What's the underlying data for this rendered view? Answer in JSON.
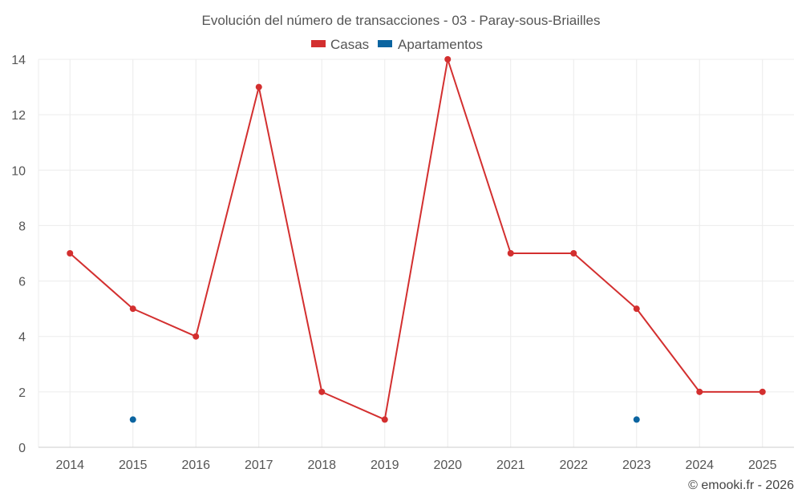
{
  "chart_data": {
    "type": "line",
    "title": "Evolución del número de transacciones - 03 - Paray-sous-Briailles",
    "categories": [
      "2014",
      "2015",
      "2016",
      "2017",
      "2018",
      "2019",
      "2020",
      "2021",
      "2022",
      "2023",
      "2024",
      "2025"
    ],
    "series": [
      {
        "name": "Casas",
        "color": "#d32f2f",
        "values": [
          7,
          5,
          4,
          13,
          2,
          1,
          14,
          7,
          7,
          5,
          2,
          2
        ]
      },
      {
        "name": "Apartamentos",
        "color": "#0b64a0",
        "values": [
          null,
          1,
          null,
          null,
          null,
          null,
          null,
          null,
          null,
          1,
          null,
          null
        ]
      }
    ],
    "ylim": [
      0,
      14
    ],
    "yticks": [
      0,
      2,
      4,
      6,
      8,
      10,
      12,
      14
    ],
    "xlabel": "",
    "ylabel": "",
    "grid": true,
    "legend_position": "top-center"
  },
  "credit": "© emooki.fr - 2026"
}
